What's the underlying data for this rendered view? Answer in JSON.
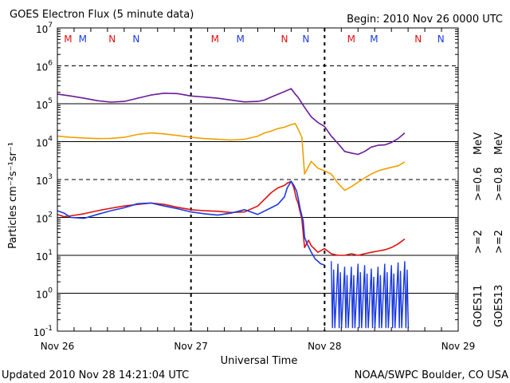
{
  "header": {
    "title": "GOES Electron Flux (5 minute data)",
    "begin": "Begin: 2010 Nov 26 0000 UTC"
  },
  "footer": {
    "updated": "Updated 2010 Nov 28 14:21:04 UTC",
    "credit": "NOAA/SWPC Boulder, CO USA"
  },
  "colors": {
    "purple": "#6a1b9a",
    "orange": "#f0a000",
    "red": "#e01010",
    "blue": "#1a3ae0",
    "m_marker": "#e01010",
    "n_marker": "#1a3ae0"
  },
  "markers": [
    {
      "label": "M",
      "day": 26.08,
      "color": "red"
    },
    {
      "label": "M",
      "day": 26.19,
      "color": "blue"
    },
    {
      "label": "N",
      "day": 26.41,
      "color": "red"
    },
    {
      "label": "N",
      "day": 26.59,
      "color": "blue"
    },
    {
      "label": "M",
      "day": 27.18,
      "color": "red"
    },
    {
      "label": "M",
      "day": 27.37,
      "color": "blue"
    },
    {
      "label": "N",
      "day": 27.7,
      "color": "red"
    },
    {
      "label": "N",
      "day": 27.86,
      "color": "blue"
    },
    {
      "label": "M",
      "day": 28.2,
      "color": "red"
    },
    {
      "label": "M",
      "day": 28.37,
      "color": "blue"
    },
    {
      "label": "N",
      "day": 28.7,
      "color": "red"
    },
    {
      "label": "N",
      "day": 28.87,
      "color": "blue"
    }
  ],
  "chart_data": {
    "type": "line",
    "title": "GOES Electron Flux (5 minute data)",
    "xlabel": "Universal Time",
    "ylabel": "Particles cm⁻²s⁻¹sr⁻¹",
    "y_scale": "log",
    "ylim": [
      0.1,
      10000000
    ],
    "xlim": [
      26,
      29
    ],
    "x_ticks": [
      {
        "day": 26,
        "label": "Nov 26"
      },
      {
        "day": 27,
        "label": "Nov 27"
      },
      {
        "day": 28,
        "label": "Nov 28"
      },
      {
        "day": 29,
        "label": "Nov 29"
      }
    ],
    "y_ticks": [
      {
        "exp": -1,
        "base": "10",
        "sup": "-1"
      },
      {
        "exp": 0,
        "base": "10",
        "sup": "0"
      },
      {
        "exp": 1,
        "base": "10",
        "sup": "1"
      },
      {
        "exp": 2,
        "base": "10",
        "sup": "2"
      },
      {
        "exp": 3,
        "base": "10",
        "sup": "3"
      },
      {
        "exp": 4,
        "base": "10",
        "sup": "4"
      },
      {
        "exp": 5,
        "base": "10",
        "sup": "5"
      },
      {
        "exp": 6,
        "base": "10",
        "sup": "6"
      },
      {
        "exp": 7,
        "base": "10",
        "sup": "7"
      }
    ],
    "grid": "horizontal lines at each decade; dashed at 10^3 and 10^6",
    "legend": {
      "sat_labels": [
        "GOES11",
        "GOES13"
      ],
      "row_2": [
        ">=2",
        ">=2"
      ],
      "row_06": [
        ">=0.6",
        ">=0.8"
      ],
      "unit": "MeV"
    },
    "series": [
      {
        "name": ">=0.6 MeV",
        "color": "purple",
        "x": [
          26.0,
          26.1,
          26.2,
          26.3,
          26.4,
          26.5,
          26.6,
          26.7,
          26.8,
          26.9,
          27.0,
          27.1,
          27.2,
          27.3,
          27.4,
          27.5,
          27.55,
          27.6,
          27.7,
          27.75,
          27.78,
          27.8,
          27.85,
          27.9,
          27.95,
          28.0,
          28.05,
          28.1,
          28.15,
          28.2,
          28.25,
          28.3,
          28.35,
          28.4,
          28.45,
          28.5,
          28.55,
          28.6
        ],
        "y": [
          180000,
          160000,
          140000,
          120000,
          110000,
          115000,
          140000,
          170000,
          190000,
          185000,
          160000,
          150000,
          140000,
          125000,
          112000,
          115000,
          125000,
          150000,
          210000,
          250000,
          180000,
          150000,
          80000,
          45000,
          32000,
          25000,
          14000,
          9000,
          5500,
          5000,
          4600,
          5500,
          7200,
          8000,
          8200,
          9500,
          12000,
          17000
        ]
      },
      {
        "name": ">=0.8 MeV",
        "color": "orange",
        "x": [
          26.0,
          26.1,
          26.2,
          26.3,
          26.4,
          26.5,
          26.6,
          26.7,
          26.8,
          26.9,
          27.0,
          27.1,
          27.2,
          27.3,
          27.4,
          27.5,
          27.55,
          27.6,
          27.65,
          27.7,
          27.75,
          27.78,
          27.8,
          27.83,
          27.85,
          27.9,
          27.95,
          28.0,
          28.05,
          28.1,
          28.15,
          28.2,
          28.25,
          28.3,
          28.35,
          28.4,
          28.45,
          28.5,
          28.55,
          28.6
        ],
        "y": [
          14000,
          13000,
          12500,
          12000,
          12200,
          13000,
          15500,
          17000,
          16000,
          14500,
          13000,
          12000,
          11500,
          11000,
          11500,
          14000,
          17000,
          19000,
          22000,
          24000,
          28000,
          30000,
          22000,
          13000,
          1400,
          3000,
          2000,
          1700,
          1400,
          800,
          520,
          650,
          850,
          1100,
          1400,
          1700,
          1900,
          2100,
          2300,
          2900
        ]
      },
      {
        "name": "GOES13 >=2 MeV",
        "color": "red",
        "x": [
          26.0,
          26.05,
          26.1,
          26.2,
          26.3,
          26.4,
          26.5,
          26.6,
          26.7,
          26.8,
          26.9,
          27.0,
          27.1,
          27.2,
          27.3,
          27.4,
          27.5,
          27.6,
          27.65,
          27.7,
          27.72,
          27.75,
          27.77,
          27.79,
          27.8,
          27.83,
          27.85,
          27.88,
          27.9,
          27.95,
          28.0,
          28.05,
          28.1,
          28.15,
          28.2,
          28.25,
          28.3,
          28.35,
          28.4,
          28.45,
          28.5,
          28.55,
          28.6
        ],
        "y": [
          120,
          105,
          110,
          125,
          150,
          175,
          200,
          220,
          240,
          220,
          185,
          160,
          150,
          145,
          135,
          140,
          200,
          450,
          600,
          700,
          800,
          900,
          600,
          300,
          250,
          90,
          16,
          25,
          18,
          12,
          15,
          11,
          10,
          10,
          11,
          10,
          11,
          12,
          13,
          14,
          16,
          20,
          27
        ]
      },
      {
        "name": "GOES11 >=2 MeV",
        "color": "blue",
        "x": [
          26.0,
          26.05,
          26.1,
          26.2,
          26.3,
          26.4,
          26.5,
          26.6,
          26.7,
          26.8,
          26.9,
          27.0,
          27.1,
          27.2,
          27.3,
          27.4,
          27.5,
          27.6,
          27.65,
          27.7,
          27.72,
          27.75,
          27.77,
          27.79,
          27.8,
          27.82,
          27.84,
          27.85,
          27.87,
          27.9,
          27.93,
          27.95,
          27.97,
          28.0
        ],
        "y": [
          150,
          130,
          100,
          95,
          120,
          150,
          180,
          230,
          240,
          200,
          170,
          140,
          125,
          115,
          130,
          160,
          120,
          180,
          220,
          350,
          600,
          900,
          700,
          500,
          350,
          150,
          80,
          30,
          20,
          12,
          8,
          7,
          6,
          5.5
        ]
      },
      {
        "name": "GOES11 >=2 MeV noisy",
        "color": "blue",
        "x": [
          28.05,
          28.1,
          28.15,
          28.2,
          28.25,
          28.3,
          28.35,
          28.4,
          28.45,
          28.5,
          28.55,
          28.6
        ],
        "y_low": [
          0.12,
          0.12,
          0.12,
          0.12,
          0.12,
          0.12,
          0.12,
          0.12,
          0.12,
          0.12,
          0.12,
          0.12
        ],
        "y_high": [
          7,
          6,
          5,
          5,
          6,
          5.5,
          4.5,
          5,
          6,
          5.5,
          6.5,
          7
        ]
      }
    ]
  }
}
